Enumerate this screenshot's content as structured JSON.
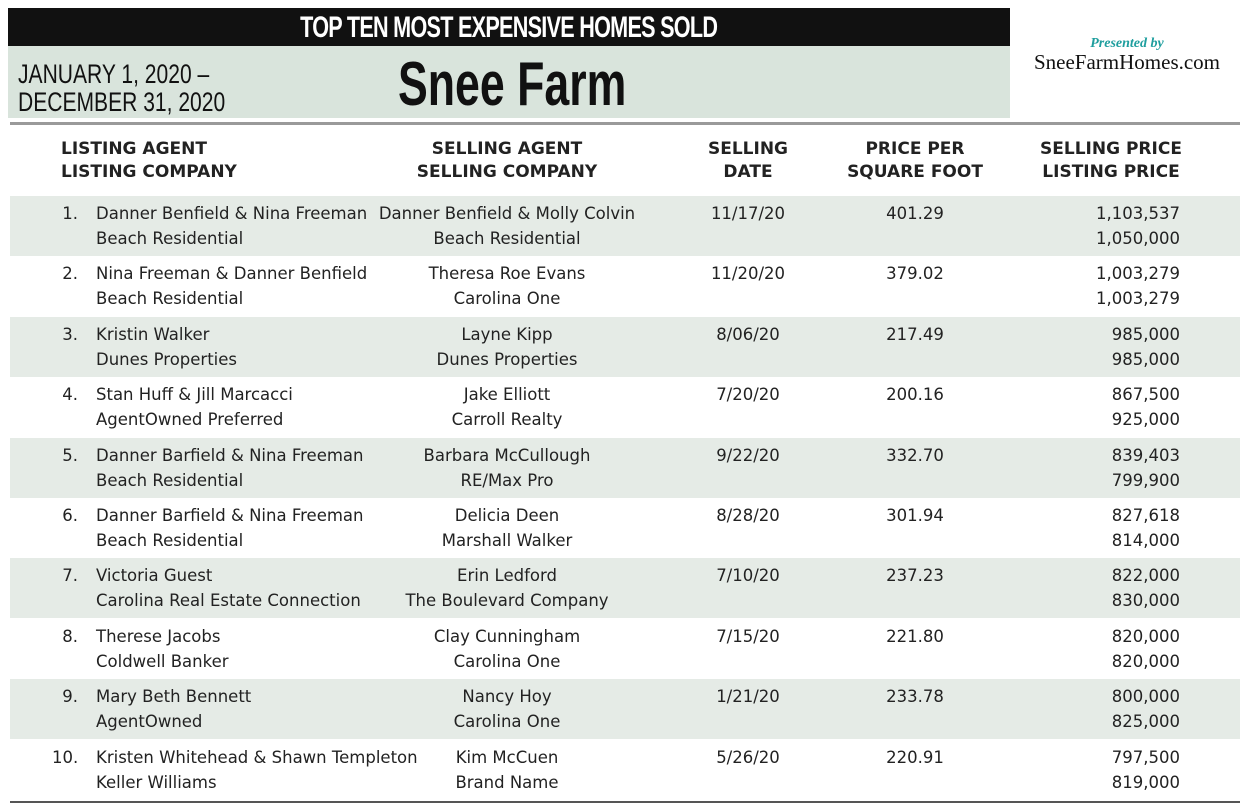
{
  "header": {
    "title": "TOP TEN MOST EXPENSIVE HOMES SOLD",
    "date_line1": "JANUARY 1, 2020 –",
    "date_line2": "DECEMBER 31, 2020",
    "community": "Snee Farm",
    "presented_by": "Presented by",
    "website": "SneeFarmHomes.com"
  },
  "columns": {
    "listing_l1": "LISTING AGENT",
    "listing_l2": "LISTING COMPANY",
    "selling_l1": "SELLING AGENT",
    "selling_l2": "SELLING COMPANY",
    "date_l1": "SELLING",
    "date_l2": "DATE",
    "ppsf_l1": "PRICE PER",
    "ppsf_l2": "SQUARE FOOT",
    "price_l1": "SELLING PRICE",
    "price_l2": "LISTING PRICE"
  },
  "rows": [
    {
      "rank": "1.",
      "listing_agent": "Danner Benfield & Nina Freeman",
      "listing_company": "Beach Residential",
      "selling_agent": "Danner Benfield & Molly Colvin",
      "selling_company": "Beach Residential",
      "date": "11/17/20",
      "ppsf": "401.29",
      "selling_price": "1,103,537",
      "listing_price": "1,050,000"
    },
    {
      "rank": "2.",
      "listing_agent": "Nina Freeman & Danner Benfield",
      "listing_company": "Beach Residential",
      "selling_agent": "Theresa Roe Evans",
      "selling_company": "Carolina One",
      "date": "11/20/20",
      "ppsf": "379.02",
      "selling_price": "1,003,279",
      "listing_price": "1,003,279"
    },
    {
      "rank": "3.",
      "listing_agent": "Kristin Walker",
      "listing_company": "Dunes Properties",
      "selling_agent": "Layne Kipp",
      "selling_company": "Dunes Properties",
      "date": "8/06/20",
      "ppsf": "217.49",
      "selling_price": "985,000",
      "listing_price": "985,000"
    },
    {
      "rank": "4.",
      "listing_agent": "Stan Huff & Jill Marcacci",
      "listing_company": "AgentOwned Preferred",
      "selling_agent": "Jake Elliott",
      "selling_company": "Carroll Realty",
      "date": "7/20/20",
      "ppsf": "200.16",
      "selling_price": "867,500",
      "listing_price": "925,000"
    },
    {
      "rank": "5.",
      "listing_agent": "Danner Barfield & Nina Freeman",
      "listing_company": "Beach Residential",
      "selling_agent": "Barbara McCullough",
      "selling_company": "RE/Max Pro",
      "date": "9/22/20",
      "ppsf": "332.70",
      "selling_price": "839,403",
      "listing_price": "799,900"
    },
    {
      "rank": "6.",
      "listing_agent": "Danner Barfield & Nina Freeman",
      "listing_company": "Beach Residential",
      "selling_agent": "Delicia Deen",
      "selling_company": "Marshall Walker",
      "date": "8/28/20",
      "ppsf": "301.94",
      "selling_price": "827,618",
      "listing_price": "814,000"
    },
    {
      "rank": "7.",
      "listing_agent": "Victoria Guest",
      "listing_company": "Carolina Real Estate Connection",
      "selling_agent": "Erin Ledford",
      "selling_company": "The Boulevard Company",
      "date": "7/10/20",
      "ppsf": "237.23",
      "selling_price": "822,000",
      "listing_price": "830,000"
    },
    {
      "rank": "8.",
      "listing_agent": "Therese Jacobs",
      "listing_company": "Coldwell Banker",
      "selling_agent": "Clay Cunningham",
      "selling_company": "Carolina One",
      "date": "7/15/20",
      "ppsf": "221.80",
      "selling_price": "820,000",
      "listing_price": "820,000"
    },
    {
      "rank": "9.",
      "listing_agent": "Mary Beth Bennett",
      "listing_company": "AgentOwned",
      "selling_agent": "Nancy Hoy",
      "selling_company": "Carolina One",
      "date": "1/21/20",
      "ppsf": "233.78",
      "selling_price": "800,000",
      "listing_price": "825,000"
    },
    {
      "rank": "10.",
      "listing_agent": "Kristen Whitehead & Shawn Templeton",
      "listing_company": "Keller Williams",
      "selling_agent": "Kim McCuen",
      "selling_company": "Brand Name",
      "date": "5/26/20",
      "ppsf": "220.91",
      "selling_price": "797,500",
      "listing_price": "819,000"
    }
  ],
  "colors": {
    "title_bar": "#111111",
    "panel": "#d9e4dc",
    "row_shade": "#e5ebe6",
    "accent_teal": "#1e9e9e"
  }
}
